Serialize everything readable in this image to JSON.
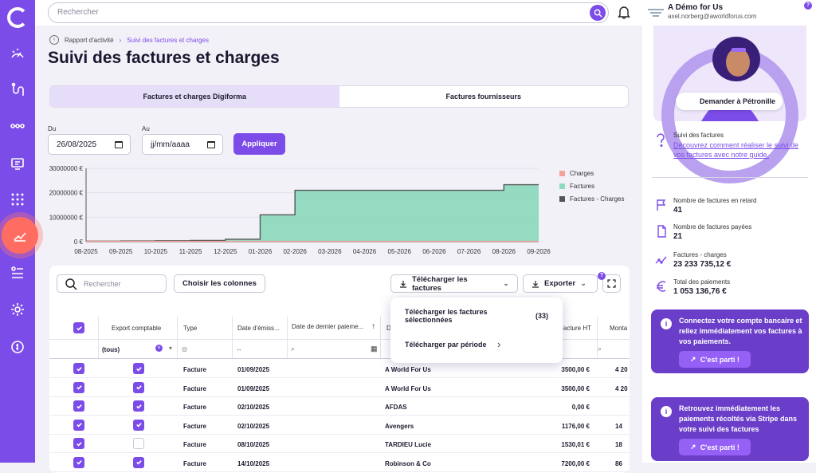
{
  "search": {
    "placeholder": "Rechercher"
  },
  "account": {
    "name": "A Démo for Us",
    "email": "axel.norberg@aworldforus.com",
    "help": "?"
  },
  "breadcrumb": {
    "parent": "Rapport d'activité",
    "current": "Suivi des factures et charges"
  },
  "page": {
    "title": "Suivi des factures et charges"
  },
  "tabs": [
    {
      "label": "Factures et charges Digiforma"
    },
    {
      "label": "Factures fournisseurs"
    }
  ],
  "filters": {
    "from_label": "Du",
    "from_value": "26/08/2025",
    "to_label": "Au",
    "to_placeholder": "jj/mm/aaaa",
    "apply": "Appliquer"
  },
  "chart_data": {
    "type": "area",
    "x": [
      "08-2025",
      "09-2025",
      "10-2025",
      "11-2025",
      "12-2025",
      "01-2026",
      "02-2026",
      "03-2026",
      "04-2026",
      "05-2026",
      "06-2026",
      "07-2026",
      "08-2026",
      "09-2026"
    ],
    "yticks": [
      "0 €",
      "10000000 €",
      "20000000 €",
      "30000000 €"
    ],
    "ylim": [
      0,
      30000000
    ],
    "series": [
      {
        "name": "Charges",
        "color": "#f4a39c",
        "values": [
          0,
          0,
          0,
          0,
          0,
          0,
          0,
          0,
          0,
          0,
          0,
          0,
          0,
          0
        ]
      },
      {
        "name": "Factures",
        "color": "#8fd9bf",
        "values": [
          200000,
          300000,
          400000,
          500000,
          1000000,
          11000000,
          21000000,
          21000000,
          21000000,
          21000000,
          21000000,
          21000000,
          23300000,
          23300000
        ]
      },
      {
        "name": "Factures - Charges",
        "color": "#555555",
        "values": [
          200000,
          300000,
          400000,
          500000,
          1000000,
          11000000,
          21000000,
          21000000,
          21000000,
          21000000,
          21000000,
          21000000,
          23300000,
          23300000
        ]
      }
    ]
  },
  "toolbar": {
    "search_placeholder": "Rechercher",
    "columns": "Choisir les colonnes",
    "download": "Télécharger les factures",
    "export": "Exporter",
    "badge": "?"
  },
  "dropdown": {
    "selected_label": "Télécharger les factures sélectionnées",
    "selected_count": "(33)",
    "period_label": "Télécharger par période"
  },
  "table": {
    "headers": {
      "export": "Export comptable",
      "type": "Type",
      "date": "Date d'émiss...",
      "payment": "Date de dernier paieme...",
      "col_d": "D",
      "ht": "Facture HT",
      "amount": "Monta"
    },
    "filter_export": "(tous)",
    "rows": [
      {
        "export": true,
        "type": "Facture",
        "date": "01/09/2025",
        "name": "A World For Us",
        "ht": "3500,00 €",
        "amount": "4 20"
      },
      {
        "export": true,
        "type": "Facture",
        "date": "01/09/2025",
        "name": "A World For Us",
        "ht": "3500,00 €",
        "amount": "4 20"
      },
      {
        "export": true,
        "type": "Facture",
        "date": "02/10/2025",
        "name": "AFDAS",
        "ht": "0,00 €",
        "amount": ""
      },
      {
        "export": true,
        "type": "Facture",
        "date": "02/10/2025",
        "name": "Avengers",
        "ht": "1176,00 €",
        "amount": "14"
      },
      {
        "export": false,
        "type": "Facture",
        "date": "08/10/2025",
        "name": "TARDIEU Lucie",
        "ht": "1530,01 €",
        "amount": "18"
      },
      {
        "export": true,
        "type": "Facture",
        "date": "14/10/2025",
        "name": "Robinson & Co",
        "ht": "7200,00 €",
        "amount": "86"
      }
    ]
  },
  "right": {
    "petronille": "Demander à Pétronille",
    "help_title": "Suivi des factures",
    "help_link": "Découvrez comment réaliser le suivi de vos factures avec notre guide.",
    "stats": [
      {
        "label": "Nombre de factures en retard",
        "value": "41",
        "icon": "flag-icon"
      },
      {
        "label": "Nombre de factures payées",
        "value": "21",
        "icon": "document-icon"
      },
      {
        "label": "Factures - charges",
        "value": "23 233 735,12 €",
        "icon": "chart-icon"
      },
      {
        "label": "Total des paiements",
        "value": "1 053 136,76 €",
        "icon": "euro-icon"
      }
    ],
    "promos": [
      {
        "text": "Connectez votre compte bancaire et reliez immédiatement vos factures à vos paiements.",
        "cta": "C'est parti !"
      },
      {
        "text": "Retrouvez immédiatement les paiements récoltés via Stripe dans votre suivi des factures",
        "cta": "C'est parti !"
      }
    ]
  }
}
